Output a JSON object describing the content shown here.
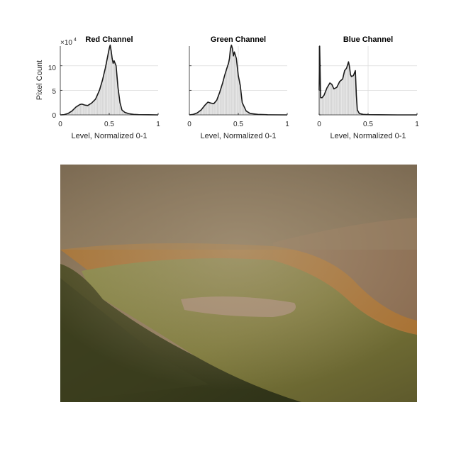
{
  "chart_data": [
    {
      "type": "area",
      "title": "Red Channel",
      "xlabel": "Level, Normalized 0-1",
      "ylabel": "Pixel Count",
      "y_exponent": "4",
      "xlim": [
        0,
        1
      ],
      "ylim": [
        0,
        14
      ],
      "xticks": [
        "0",
        "0.5",
        "1"
      ],
      "yticks": [
        "0",
        "5",
        "10"
      ],
      "grid": true,
      "x": [
        0,
        0.04,
        0.08,
        0.12,
        0.16,
        0.2,
        0.22,
        0.25,
        0.28,
        0.32,
        0.36,
        0.4,
        0.43,
        0.46,
        0.48,
        0.5,
        0.51,
        0.52,
        0.53,
        0.54,
        0.55,
        0.57,
        0.59,
        0.61,
        0.63,
        0.66,
        0.7,
        0.75,
        0.8,
        0.9,
        1.0
      ],
      "values": [
        0,
        0.05,
        0.3,
        0.8,
        1.6,
        2.1,
        2.2,
        2.0,
        1.9,
        2.4,
        3.2,
        5.0,
        7.0,
        9.5,
        11.5,
        13.5,
        14.2,
        13.0,
        11.5,
        10.5,
        11.0,
        10.0,
        5.5,
        2.5,
        1.0,
        0.5,
        0.25,
        0.1,
        0.05,
        0.02,
        0
      ]
    },
    {
      "type": "area",
      "title": "Green Channel",
      "xlabel": "Level, Normalized 0-1",
      "ylabel": "",
      "xlim": [
        0,
        1
      ],
      "ylim": [
        0,
        14
      ],
      "xticks": [
        "0",
        "0.5",
        "1"
      ],
      "yticks": [],
      "grid": true,
      "x": [
        0,
        0.04,
        0.08,
        0.12,
        0.16,
        0.19,
        0.22,
        0.25,
        0.28,
        0.31,
        0.34,
        0.36,
        0.38,
        0.4,
        0.41,
        0.42,
        0.43,
        0.44,
        0.45,
        0.46,
        0.48,
        0.5,
        0.52,
        0.54,
        0.58,
        0.62,
        0.7,
        0.8,
        1.0
      ],
      "values": [
        0,
        0.1,
        0.4,
        1.0,
        2.0,
        2.6,
        2.4,
        2.3,
        3.0,
        4.6,
        6.5,
        8.0,
        9.3,
        10.5,
        11.5,
        13.5,
        14.2,
        13.5,
        12.0,
        12.8,
        11.5,
        8.0,
        6.0,
        2.5,
        0.8,
        0.3,
        0.1,
        0.02,
        0
      ]
    },
    {
      "type": "area",
      "title": "Blue Channel",
      "xlabel": "Level, Normalized 0-1",
      "ylabel": "",
      "xlim": [
        0,
        1
      ],
      "ylim": [
        0,
        14
      ],
      "xticks": [
        "0",
        "0.5",
        "1"
      ],
      "yticks": [],
      "grid": true,
      "x": [
        0,
        0.005,
        0.015,
        0.03,
        0.05,
        0.08,
        0.11,
        0.13,
        0.15,
        0.18,
        0.21,
        0.24,
        0.26,
        0.28,
        0.3,
        0.31,
        0.32,
        0.33,
        0.35,
        0.37,
        0.38,
        0.39,
        0.41,
        0.45,
        0.5,
        0.6,
        0.8,
        1.0
      ],
      "values": [
        5.0,
        14.0,
        3.5,
        3.5,
        4.0,
        5.5,
        6.5,
        6.2,
        5.3,
        5.6,
        6.8,
        7.3,
        9.0,
        9.5,
        10.8,
        9.8,
        8.2,
        7.8,
        8.0,
        9.0,
        4.0,
        1.0,
        0.3,
        0.1,
        0.05,
        0.02,
        0,
        0
      ]
    }
  ],
  "image": {
    "subject": "steaming geothermal pool with orange and green microbial mats"
  },
  "colors": {
    "curve": "#1a1a1a",
    "fill": "#e6e6e6",
    "hatch": "#c8c8c8",
    "grid": "#dcdcdc",
    "axis": "#262626"
  }
}
